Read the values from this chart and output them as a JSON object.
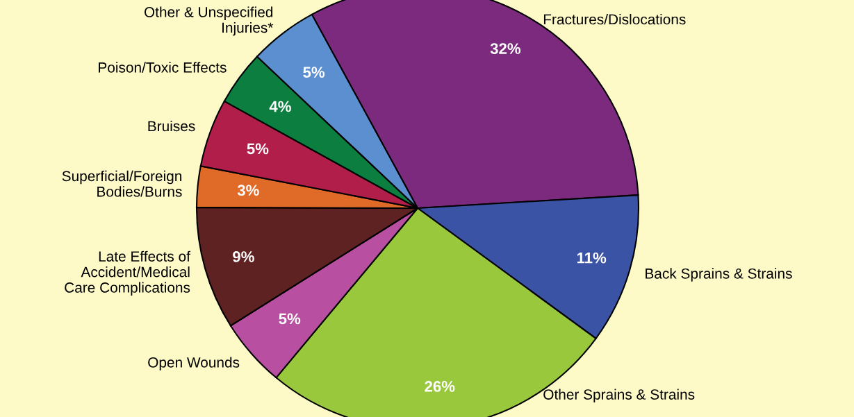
{
  "chart_data": {
    "type": "pie",
    "categories": [
      "Fractures/Dislocations",
      "Back Sprains & Strains",
      "Other Sprains & Strains",
      "Open Wounds",
      "Late Effects of\nAccident/Medical\nCare Complications",
      "Superficial/Foreign\nBodies/Burns",
      "Bruises",
      "Poison/Toxic Effects",
      "Other & Unspecified\nInjuries*"
    ],
    "values": [
      32,
      11,
      26,
      5,
      9,
      3,
      5,
      4,
      5
    ],
    "value_labels": [
      "32%",
      "11%",
      "26%",
      "5%",
      "9%",
      "3%",
      "5%",
      "4%",
      "5%"
    ],
    "colors": [
      "#7b2a7e",
      "#3a53a4",
      "#9ac83c",
      "#b94fa0",
      "#5f2223",
      "#e06b28",
      "#b21e4a",
      "#0c7f40",
      "#5b8fcf"
    ]
  }
}
